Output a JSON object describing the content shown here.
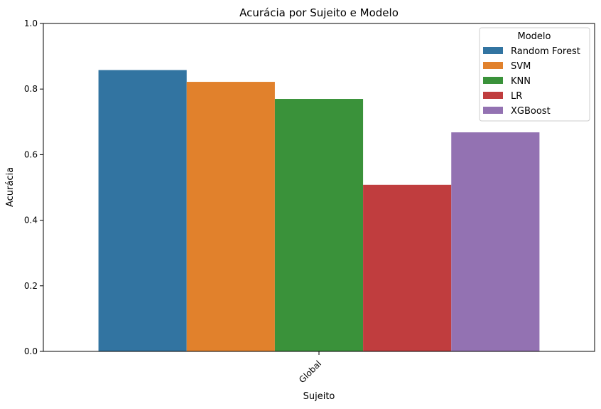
{
  "chart_data": {
    "type": "bar",
    "title": "Acurácia por Sujeito e Modelo",
    "xlabel": "Sujeito",
    "ylabel": "Acurácia",
    "categories": [
      "Global"
    ],
    "ylim": [
      0,
      1.0
    ],
    "yticks": [
      "0.0",
      "0.2",
      "0.4",
      "0.6",
      "0.8",
      "1.0"
    ],
    "grid": false,
    "legend": {
      "title": "Modelo",
      "placement": "top-right"
    },
    "series": [
      {
        "name": "Random Forest",
        "values": [
          0.858
        ],
        "color": "#3274a1"
      },
      {
        "name": "SVM",
        "values": [
          0.822
        ],
        "color": "#e1812c"
      },
      {
        "name": "KNN",
        "values": [
          0.77
        ],
        "color": "#3a923a"
      },
      {
        "name": "LR",
        "values": [
          0.508
        ],
        "color": "#c03d3e"
      },
      {
        "name": "XGBoost",
        "values": [
          0.668
        ],
        "color": "#9372b2"
      }
    ]
  }
}
